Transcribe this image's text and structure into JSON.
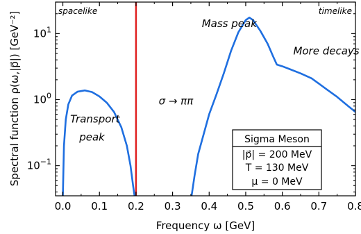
{
  "chart_data": {
    "type": "line",
    "xlabel": "Frequency ω [GeV]",
    "ylabel": "Spectral function ρ(ω,|p⃗|) [GeV⁻²]",
    "xlim": [
      -0.02,
      0.8
    ],
    "ylim": [
      0.035,
      30
    ],
    "y_scale": "log",
    "x_ticks": [
      0.0,
      0.1,
      0.2,
      0.3,
      0.4,
      0.5,
      0.6,
      0.7,
      0.8
    ],
    "x_tick_labels": [
      "0.0",
      "0.1",
      "0.2",
      "0.3",
      "0.4",
      "0.5",
      "0.6",
      "0.7",
      "0.8"
    ],
    "y_major_ticks": [
      0.1,
      1,
      10
    ],
    "y_tick_labels": [
      {
        "base": "10",
        "exp": "−1"
      },
      {
        "base": "10",
        "exp": "0"
      },
      {
        "base": "10",
        "exp": "1"
      }
    ],
    "grid": false,
    "series": [
      {
        "color": "#1f6fe0",
        "segments": [
          {
            "x": [
              0.0,
              0.003,
              0.008,
              0.015,
              0.025,
              0.04,
              0.06,
              0.08,
              0.1,
              0.12,
              0.14,
              0.16,
              0.175,
              0.185,
              0.192,
              0.196
            ],
            "y": [
              0.035,
              0.2,
              0.5,
              0.85,
              1.15,
              1.32,
              1.38,
              1.3,
              1.12,
              0.9,
              0.65,
              0.38,
              0.2,
              0.1,
              0.05,
              0.035
            ]
          },
          {
            "x": [
              0.352,
              0.36,
              0.37,
              0.385,
              0.4,
              0.42,
              0.44,
              0.46,
              0.48,
              0.5,
              0.51,
              0.52,
              0.54,
              0.56,
              0.575,
              0.585,
              0.6,
              0.62,
              0.65,
              0.68,
              0.7,
              0.72,
              0.75,
              0.78,
              0.8
            ],
            "y": [
              0.035,
              0.07,
              0.15,
              0.3,
              0.6,
              1.2,
              2.5,
              5.5,
              10.5,
              16.0,
              17.5,
              16.0,
              11.0,
              7.0,
              4.5,
              3.4,
              3.2,
              2.9,
              2.5,
              2.1,
              1.75,
              1.45,
              1.1,
              0.8,
              0.65
            ]
          }
        ]
      }
    ],
    "vertical_line": {
      "x": 0.2,
      "color": "#e02020"
    },
    "region_labels": {
      "left": "spacelike",
      "right": "timelike"
    },
    "annotations": [
      {
        "text": "Mass peak",
        "x": 0.38,
        "y": 12.5
      },
      {
        "text": "More decays",
        "x": 0.63,
        "y": 4.8
      },
      {
        "text": "Transport",
        "x": 0.02,
        "y": 0.45
      },
      {
        "text": "peak",
        "x": 0.045,
        "y": 0.24
      },
      {
        "text": "σ → ππ",
        "x": 0.262,
        "y": 0.84
      }
    ],
    "legend_box": {
      "placement": "bottom-right",
      "lines": [
        "Sigma Meson",
        "|p⃗| = 200 MeV",
        "T = 130 MeV",
        "μ = 0 MeV"
      ]
    }
  }
}
